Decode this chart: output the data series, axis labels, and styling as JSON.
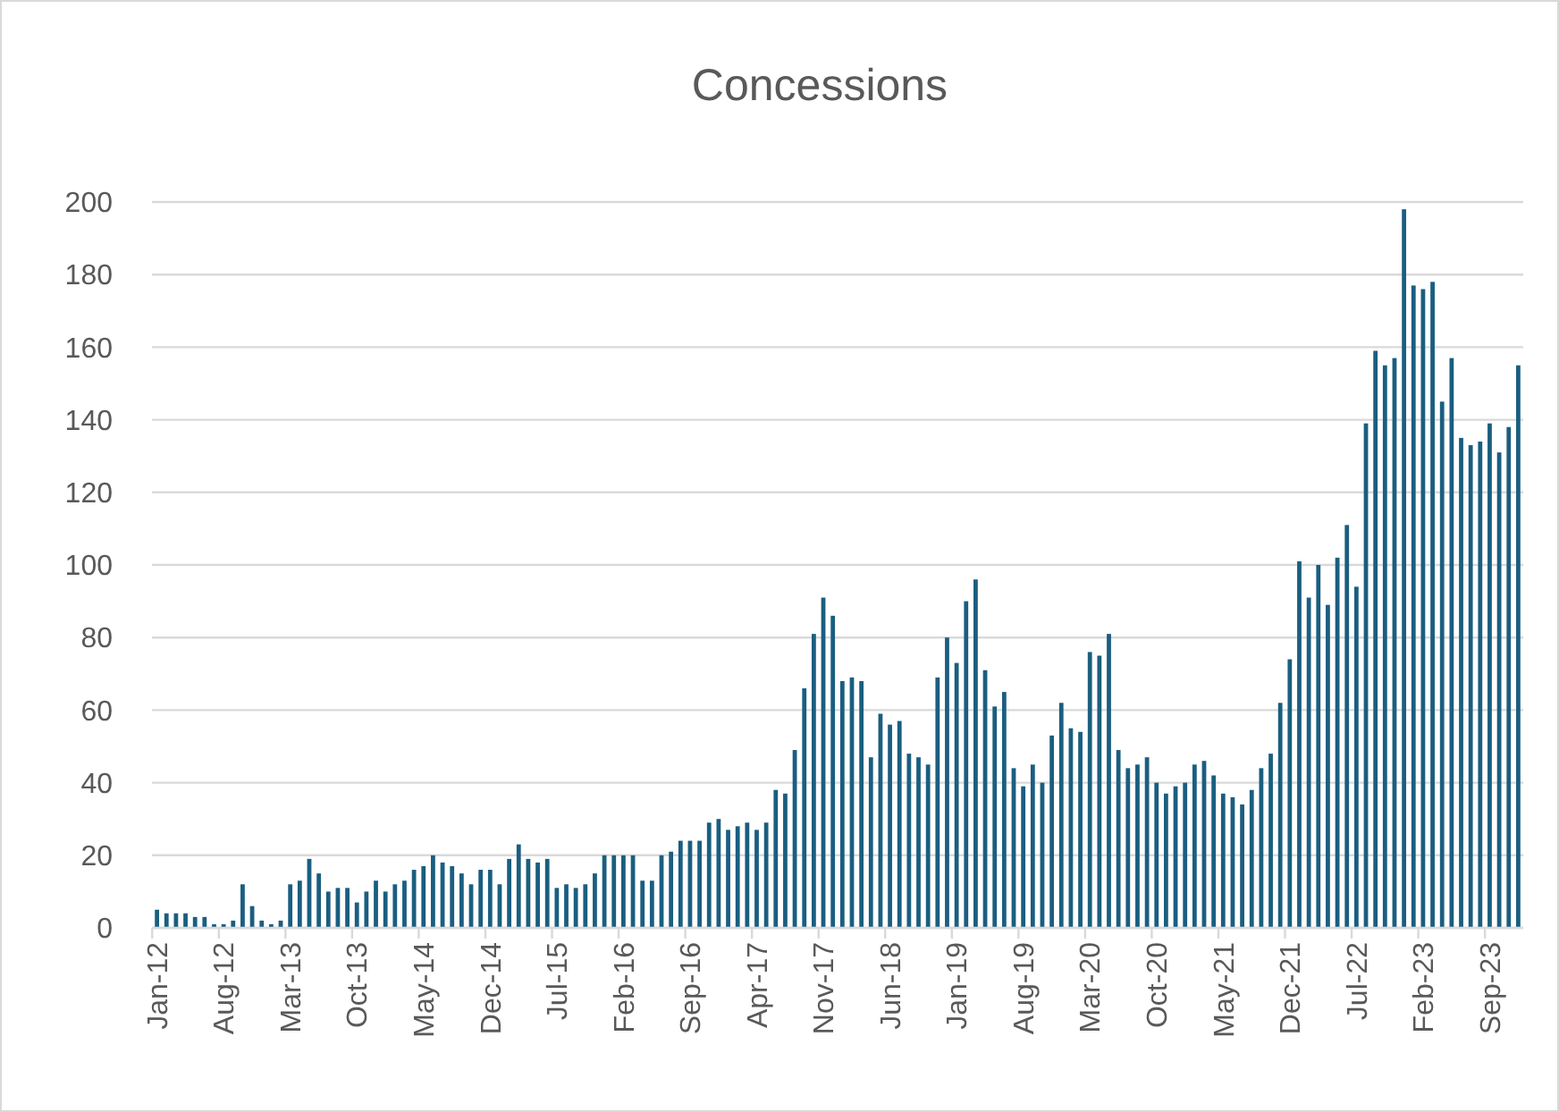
{
  "chart_data": {
    "type": "bar",
    "title": "Concessions",
    "categories": [
      "Jan-12",
      null,
      null,
      null,
      null,
      null,
      null,
      "Aug-12",
      null,
      null,
      null,
      null,
      null,
      null,
      "Mar-13",
      null,
      null,
      null,
      null,
      null,
      null,
      "Oct-13",
      null,
      null,
      null,
      null,
      null,
      null,
      "May-14",
      null,
      null,
      null,
      null,
      null,
      null,
      "Dec-14",
      null,
      null,
      null,
      null,
      null,
      null,
      "Jul-15",
      null,
      null,
      null,
      null,
      null,
      null,
      "Feb-16",
      null,
      null,
      null,
      null,
      null,
      null,
      "Sep-16",
      null,
      null,
      null,
      null,
      null,
      null,
      "Apr-17",
      null,
      null,
      null,
      null,
      null,
      null,
      "Nov-17",
      null,
      null,
      null,
      null,
      null,
      null,
      "Jun-18",
      null,
      null,
      null,
      null,
      null,
      null,
      "Jan-19",
      null,
      null,
      null,
      null,
      null,
      null,
      "Aug-19",
      null,
      null,
      null,
      null,
      null,
      null,
      "Mar-20",
      null,
      null,
      null,
      null,
      null,
      null,
      "Oct-20",
      null,
      null,
      null,
      null,
      null,
      null,
      "May-21",
      null,
      null,
      null,
      null,
      null,
      null,
      "Dec-21",
      null,
      null,
      null,
      null,
      null,
      null,
      "Jul-22",
      null,
      null,
      null,
      null,
      null,
      null,
      "Feb-23",
      null,
      null,
      null,
      null,
      null,
      null,
      "Sep-23",
      null,
      null,
      null
    ],
    "values": [
      5,
      4,
      4,
      4,
      3,
      3,
      1,
      1,
      2,
      12,
      6,
      2,
      1,
      2,
      12,
      13,
      19,
      15,
      10,
      11,
      11,
      7,
      10,
      13,
      10,
      12,
      13,
      16,
      17,
      20,
      18,
      17,
      15,
      12,
      16,
      16,
      12,
      19,
      23,
      19,
      18,
      19,
      11,
      12,
      11,
      12,
      15,
      20,
      20,
      20,
      20,
      13,
      13,
      20,
      21,
      24,
      24,
      24,
      29,
      30,
      27,
      28,
      29,
      27,
      29,
      38,
      37,
      49,
      66,
      81,
      91,
      86,
      68,
      69,
      68,
      47,
      59,
      56,
      57,
      48,
      47,
      45,
      69,
      80,
      73,
      90,
      96,
      71,
      61,
      65,
      44,
      39,
      45,
      40,
      53,
      62,
      55,
      54,
      76,
      75,
      81,
      49,
      44,
      45,
      47,
      40,
      37,
      39,
      40,
      45,
      46,
      42,
      37,
      36,
      34,
      38,
      44,
      48,
      62,
      74,
      101,
      91,
      100,
      89,
      102,
      111,
      94,
      139,
      159,
      155,
      157,
      198,
      177,
      176,
      178,
      145,
      157,
      135,
      133,
      134,
      139,
      131,
      138,
      155
    ],
    "color": "#1a5e80",
    "ylim": [
      0,
      200
    ],
    "yticks": [
      0,
      20,
      40,
      60,
      80,
      100,
      120,
      140,
      160,
      180,
      200
    ],
    "grid": "y"
  }
}
